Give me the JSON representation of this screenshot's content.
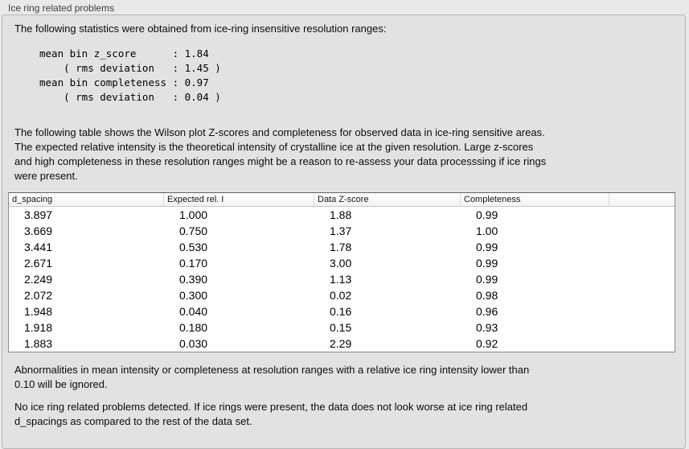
{
  "panel": {
    "title": "Ice ring related problems"
  },
  "sections": {
    "intro": "The following statistics were obtained from ice-ring insensitive resolution ranges:",
    "stats_block": "mean bin z_score      : 1.84\n    ( rms deviation   : 1.45 )\nmean bin completeness : 0.97\n    ( rms deviation   : 0.04 )",
    "stats": {
      "mean_bin_z_score": "1.84",
      "z_score_rms_deviation": "1.45",
      "mean_bin_completeness": "0.97",
      "completeness_rms_deviation": "0.04"
    },
    "table_caption": "The following table shows the Wilson plot Z-scores and completeness for observed data in ice-ring sensitive areas.\nThe expected relative intensity is the theoretical intensity of crystalline ice at the given resolution. Large z-scores\nand high completeness in these resolution ranges might be a reason to re-assess your data processsing if ice rings\nwere present.",
    "ignore_note": "Abnormalities in mean intensity or completeness at resolution ranges with a relative ice ring intensity lower than\n0.10 will be ignored.",
    "conclusion": "No ice ring related problems detected. If ice rings were present, the data does not look worse at ice ring related\nd_spacings as compared to the rest of the data set."
  },
  "table": {
    "headers": [
      "d_spacing",
      "Expected rel. I",
      "Data Z-score",
      "Completeness"
    ],
    "rows": [
      [
        "3.897",
        "1.000",
        "1.88",
        "0.99"
      ],
      [
        "3.669",
        "0.750",
        "1.37",
        "1.00"
      ],
      [
        "3.441",
        "0.530",
        "1.78",
        "0.99"
      ],
      [
        "2.671",
        "0.170",
        "3.00",
        "0.99"
      ],
      [
        "2.249",
        "0.390",
        "1.13",
        "0.99"
      ],
      [
        "2.072",
        "0.300",
        "0.02",
        "0.98"
      ],
      [
        "1.948",
        "0.040",
        "0.16",
        "0.96"
      ],
      [
        "1.918",
        "0.180",
        "0.15",
        "0.93"
      ],
      [
        "1.883",
        "0.030",
        "2.29",
        "0.92"
      ]
    ]
  }
}
